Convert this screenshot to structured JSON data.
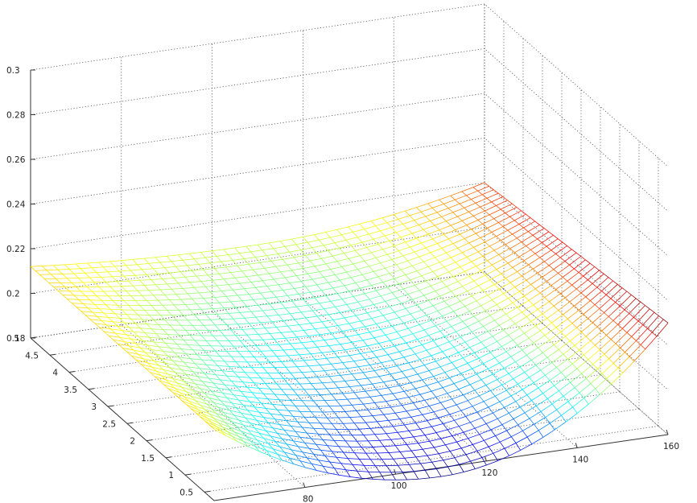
{
  "chart_data": {
    "type": "surface",
    "surface_style": "mesh",
    "colormap": "jet",
    "grid": true,
    "x": {
      "ticks": [
        80,
        100,
        120,
        140,
        160
      ],
      "tick_labels": [
        "80",
        "100",
        "120",
        "140",
        "160"
      ],
      "lim": [
        60,
        160
      ]
    },
    "y": {
      "ticks": [
        0.5,
        1,
        1.5,
        2,
        2.5,
        3,
        3.5,
        4,
        4.5,
        5
      ],
      "tick_labels": [
        "0.5",
        "1",
        "1.5",
        "2",
        "2.5",
        "3",
        "3.5",
        "4",
        "4.5",
        "5"
      ],
      "lim": [
        0.25,
        5
      ]
    },
    "z": {
      "ticks": [
        0.18,
        0.2,
        0.22,
        0.24,
        0.26,
        0.28,
        0.3
      ],
      "tick_labels": [
        "0.18",
        "0.2",
        "0.22",
        "0.24",
        "0.26",
        "0.28",
        "0.3"
      ],
      "lim": [
        0.18,
        0.3
      ]
    },
    "surface": {
      "x_range": [
        60,
        160
      ],
      "y_range": [
        0.25,
        5
      ],
      "corners": {
        "x60_y0.25": 0.212,
        "x60_y5": 0.212,
        "x160_y0.25": 0.23,
        "x160_y5": 0.22
      },
      "minimum": {
        "x": 110,
        "y": 0.25,
        "z": 0.176
      },
      "front_midpoint": {
        "x": 110,
        "y": 0.25,
        "z": 0.176
      },
      "back_midpoint": {
        "x": 110,
        "y": 5,
        "z": 0.207
      }
    },
    "title": ""
  }
}
